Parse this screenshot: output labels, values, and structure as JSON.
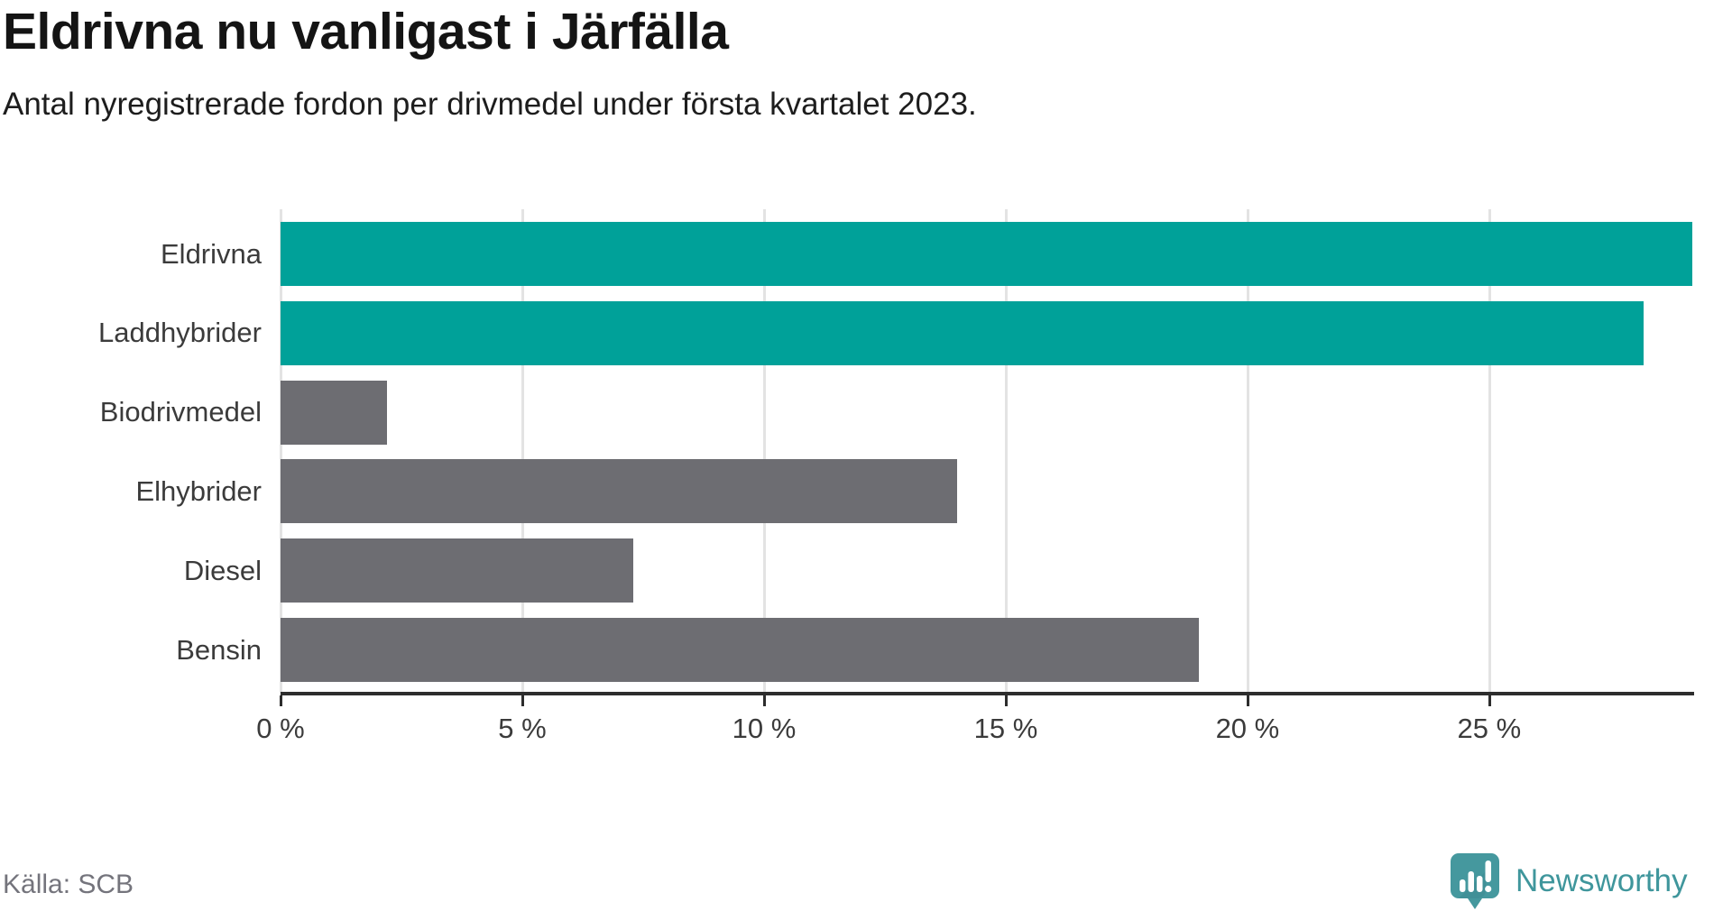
{
  "header": {
    "title": "Eldrivna nu vanligast i Järfälla",
    "subtitle": "Antal nyregistrerade fordon per drivmedel under första kvartalet 2023."
  },
  "chart_data": {
    "type": "bar",
    "orientation": "horizontal",
    "title": "Eldrivna nu vanligast i Järfälla",
    "subtitle": "Antal nyregistrerade fordon per drivmedel under första kvartalet 2023.",
    "categories": [
      "Eldrivna",
      "Laddhybrider",
      "Biodrivmedel",
      "Elhybrider",
      "Diesel",
      "Bensin"
    ],
    "values": [
      29.2,
      28.2,
      2.2,
      14.0,
      7.3,
      19.0
    ],
    "unit": "%",
    "xlabel": "",
    "ylabel": "",
    "xlim": [
      0,
      29.2
    ],
    "xticks": [
      0,
      5,
      10,
      15,
      20,
      25
    ],
    "xtick_labels": [
      "0 %",
      "5 %",
      "10 %",
      "15 %",
      "20 %",
      "25 %"
    ],
    "grid": "vertical",
    "legend": "none",
    "bar_colors": [
      "#00a199",
      "#00a199",
      "#6d6d72",
      "#6d6d72",
      "#6d6d72",
      "#6d6d72"
    ]
  },
  "colors": {
    "highlight_teal": "#00a199",
    "bar_gray": "#6d6d72",
    "grid": "#e3e3e3",
    "axis": "#2d2d2d",
    "label": "#3b3b3b",
    "source_text": "#74747c",
    "brand_teal": "#3f969c",
    "logo_fill": "#45989e"
  },
  "footer": {
    "source": "Källa: SCB",
    "brand": "Newsworthy",
    "logo_icon": "newsworthy-speech-bubble-chart-icon"
  }
}
